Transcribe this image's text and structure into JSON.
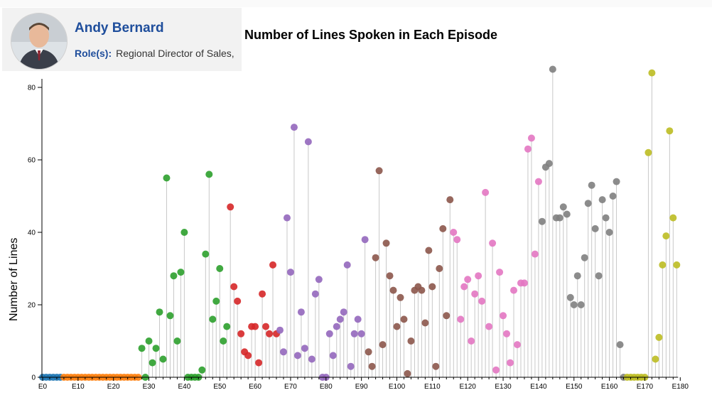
{
  "card": {
    "name": "Andy Bernard",
    "role_label": "Role(s):",
    "role_value": "Regional Director of Sales,"
  },
  "chart_data": {
    "type": "scatter",
    "title": "Number of Lines Spoken in Each Episode",
    "ylabel": "Number of Lines",
    "xlabel": "",
    "ylim": [
      0,
      80
    ],
    "y_ticks": [
      0,
      20,
      40,
      60,
      80
    ],
    "x_tick_labels": [
      "E0",
      "E10",
      "E20",
      "E30",
      "E40",
      "E50",
      "E60",
      "E70",
      "E80",
      "E90",
      "E100",
      "E110",
      "E120",
      "E130",
      "E140",
      "E150",
      "E160",
      "E170",
      "E180"
    ],
    "grid": false,
    "legend": "none",
    "season_colors": [
      "#1f77b4",
      "#ff7f0e",
      "#2ca02c",
      "#d62728",
      "#9467bd",
      "#8c564b",
      "#e377c2",
      "#7f7f7f",
      "#bcbd22"
    ],
    "season_start_episodes": [
      0,
      6,
      28,
      53,
      67,
      92,
      116,
      141,
      165
    ],
    "values": [
      0,
      0,
      0,
      0,
      0,
      0,
      0,
      0,
      0,
      0,
      0,
      0,
      0,
      0,
      0,
      0,
      0,
      0,
      0,
      0,
      0,
      0,
      0,
      0,
      0,
      0,
      0,
      0,
      8,
      0,
      10,
      4,
      8,
      18,
      5,
      55,
      17,
      28,
      10,
      29,
      40,
      0,
      0,
      0,
      0,
      2,
      34,
      56,
      16,
      21,
      30,
      10,
      14,
      47,
      25,
      21,
      12,
      7,
      6,
      14,
      14,
      4,
      23,
      14,
      12,
      31,
      12,
      13,
      7,
      44,
      29,
      69,
      6,
      18,
      8,
      65,
      5,
      23,
      27,
      0,
      0,
      12,
      6,
      14,
      16,
      18,
      31,
      3,
      12,
      16,
      12,
      38,
      7,
      3,
      33,
      57,
      9,
      37,
      28,
      24,
      14,
      22,
      16,
      1,
      10,
      24,
      25,
      24,
      15,
      35,
      25,
      3,
      30,
      41,
      17,
      49,
      40,
      38,
      16,
      25,
      27,
      10,
      23,
      28,
      21,
      51,
      14,
      37,
      2,
      29,
      17,
      12,
      4,
      24,
      9,
      26,
      26,
      63,
      66,
      34,
      54,
      43,
      58,
      59,
      85,
      44,
      44,
      47,
      45,
      22,
      20,
      28,
      20,
      33,
      48,
      53,
      41,
      28,
      49,
      44,
      40,
      50,
      54,
      9,
      0,
      0,
      0,
      0,
      0,
      0,
      0,
      62,
      84,
      5,
      11,
      31,
      39,
      68,
      44,
      31
    ]
  }
}
